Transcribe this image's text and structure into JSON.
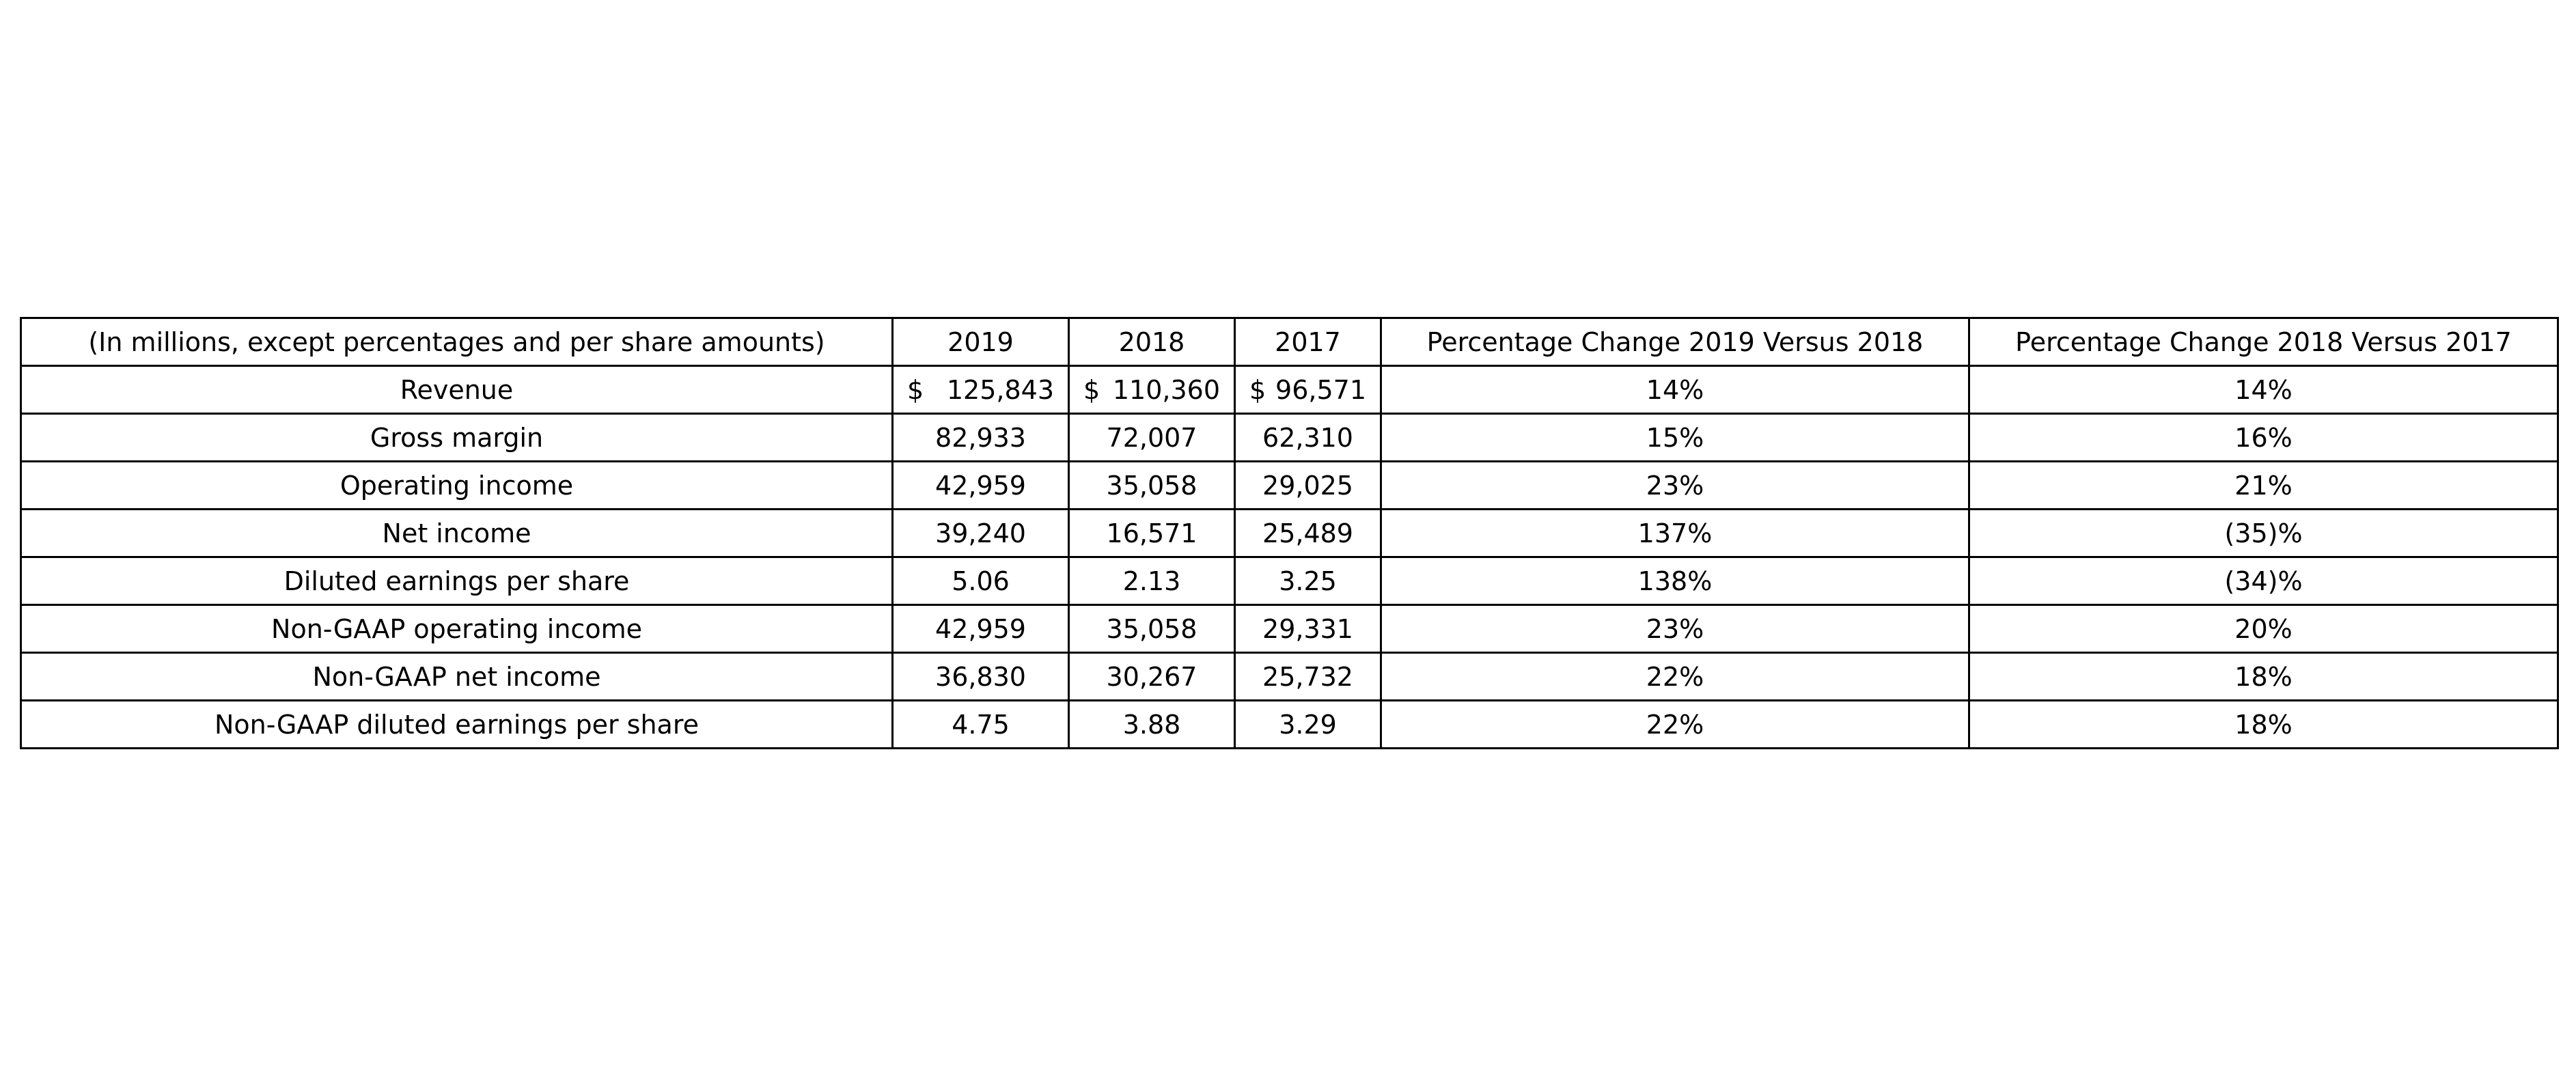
{
  "chart_data": {
    "type": "table",
    "columns": [
      "(In millions, except percentages and per share amounts)",
      "2019",
      "2018",
      "2017",
      "Percentage Change 2019 Versus 2018",
      "Percentage Change 2018 Versus 2017"
    ],
    "rows": [
      {
        "label": "Revenue",
        "currency": "$",
        "v2019": "125,843",
        "v2018": "110,360",
        "v2017": "96,571",
        "chg_2019_2018": "14%",
        "chg_2018_2017": "14%"
      },
      {
        "label": "Gross margin",
        "v2019": "82,933",
        "v2018": "72,007",
        "v2017": "62,310",
        "chg_2019_2018": "15%",
        "chg_2018_2017": "16%"
      },
      {
        "label": "Operating income",
        "v2019": "42,959",
        "v2018": "35,058",
        "v2017": "29,025",
        "chg_2019_2018": "23%",
        "chg_2018_2017": "21%"
      },
      {
        "label": "Net income",
        "v2019": "39,240",
        "v2018": "16,571",
        "v2017": "25,489",
        "chg_2019_2018": "137%",
        "chg_2018_2017": "(35)%"
      },
      {
        "label": "Diluted earnings per share",
        "v2019": "5.06",
        "v2018": "2.13",
        "v2017": "3.25",
        "chg_2019_2018": "138%",
        "chg_2018_2017": "(34)%"
      },
      {
        "label": "Non-GAAP operating income",
        "v2019": "42,959",
        "v2018": "35,058",
        "v2017": "29,331",
        "chg_2019_2018": "23%",
        "chg_2018_2017": "20%"
      },
      {
        "label": "Non-GAAP net income",
        "v2019": "36,830",
        "v2018": "30,267",
        "v2017": "25,732",
        "chg_2019_2018": "22%",
        "chg_2018_2017": "18%"
      },
      {
        "label": "Non-GAAP diluted earnings per share",
        "v2019": "4.75",
        "v2018": "3.88",
        "v2017": "3.29",
        "chg_2019_2018": "22%",
        "chg_2018_2017": "18%"
      }
    ]
  }
}
